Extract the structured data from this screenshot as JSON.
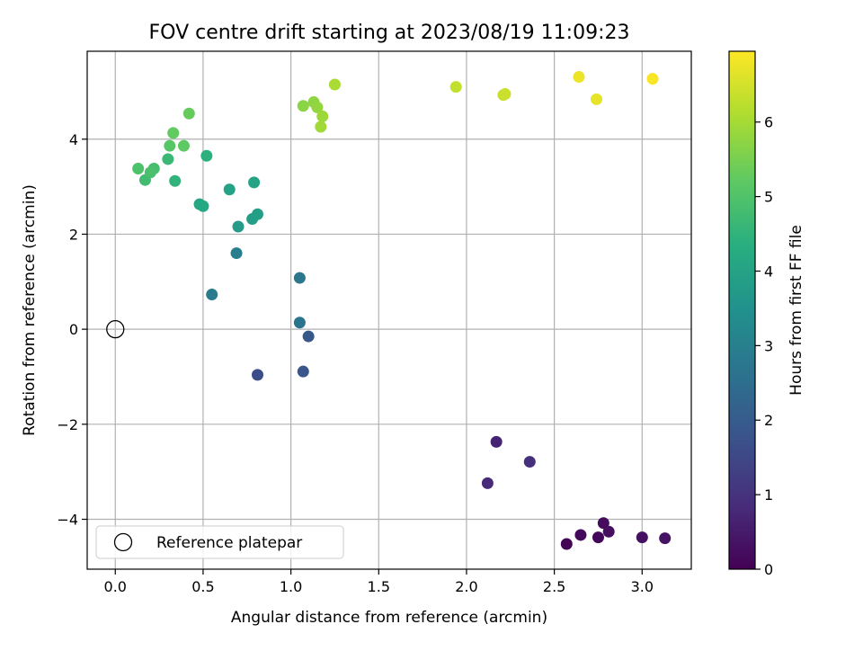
{
  "chart_data": {
    "type": "scatter",
    "title": "FOV centre drift starting at 2023/08/19 11:09:23",
    "xlabel": "Angular distance from reference (arcmin)",
    "ylabel": "Rotation from reference (arcmin)",
    "xlim": [
      -0.16,
      3.28
    ],
    "ylim": [
      -5.05,
      5.85
    ],
    "xticks": [
      0.0,
      0.5,
      1.0,
      1.5,
      2.0,
      2.5,
      3.0
    ],
    "xtick_labels": [
      "0.0",
      "0.5",
      "1.0",
      "1.5",
      "2.0",
      "2.5",
      "3.0"
    ],
    "yticks": [
      -4,
      -2,
      0,
      2,
      4
    ],
    "ytick_labels": [
      "−4",
      "−2",
      "0",
      "2",
      "4"
    ],
    "grid": true,
    "colormap": "viridis",
    "colorbar": {
      "label": "Hours from first FF file",
      "range": [
        0,
        6.95
      ],
      "ticks": [
        0,
        1,
        2,
        3,
        4,
        5,
        6
      ],
      "tick_labels": [
        "0",
        "1",
        "2",
        "3",
        "4",
        "5",
        "6"
      ]
    },
    "legend": {
      "placement": "lower-left",
      "label": "Reference platepar"
    },
    "reference_point": {
      "x": 0.0,
      "y": 0.0
    },
    "points": [
      {
        "x": 2.57,
        "y": -4.52,
        "c": 0.05
      },
      {
        "x": 2.65,
        "y": -4.33,
        "c": 0.15
      },
      {
        "x": 2.75,
        "y": -4.38,
        "c": 0.1
      },
      {
        "x": 2.78,
        "y": -4.08,
        "c": 0.2
      },
      {
        "x": 2.81,
        "y": -4.26,
        "c": 0.25
      },
      {
        "x": 3.0,
        "y": -4.38,
        "c": 0.3
      },
      {
        "x": 3.13,
        "y": -4.4,
        "c": 0.35
      },
      {
        "x": 2.12,
        "y": -3.24,
        "c": 0.8
      },
      {
        "x": 2.17,
        "y": -2.37,
        "c": 0.7
      },
      {
        "x": 2.36,
        "y": -2.79,
        "c": 0.95
      },
      {
        "x": 0.81,
        "y": -0.96,
        "c": 1.65
      },
      {
        "x": 1.07,
        "y": -0.89,
        "c": 1.85
      },
      {
        "x": 1.1,
        "y": -0.15,
        "c": 1.9
      },
      {
        "x": 1.05,
        "y": 0.14,
        "c": 2.65
      },
      {
        "x": 1.05,
        "y": 1.08,
        "c": 2.75
      },
      {
        "x": 0.55,
        "y": 0.73,
        "c": 2.85
      },
      {
        "x": 0.69,
        "y": 1.6,
        "c": 2.95
      },
      {
        "x": 0.7,
        "y": 2.16,
        "c": 3.8
      },
      {
        "x": 0.78,
        "y": 2.32,
        "c": 3.85
      },
      {
        "x": 0.81,
        "y": 2.42,
        "c": 3.9
      },
      {
        "x": 0.65,
        "y": 2.94,
        "c": 3.95
      },
      {
        "x": 0.79,
        "y": 3.09,
        "c": 4.0
      },
      {
        "x": 0.48,
        "y": 2.63,
        "c": 4.1
      },
      {
        "x": 0.5,
        "y": 2.59,
        "c": 4.15
      },
      {
        "x": 0.52,
        "y": 3.65,
        "c": 4.4
      },
      {
        "x": 0.34,
        "y": 3.12,
        "c": 4.5
      },
      {
        "x": 0.3,
        "y": 3.58,
        "c": 4.65
      },
      {
        "x": 0.17,
        "y": 3.14,
        "c": 4.75
      },
      {
        "x": 0.22,
        "y": 3.38,
        "c": 4.85
      },
      {
        "x": 0.2,
        "y": 3.3,
        "c": 4.9
      },
      {
        "x": 0.13,
        "y": 3.38,
        "c": 4.95
      },
      {
        "x": 0.31,
        "y": 3.86,
        "c": 5.1
      },
      {
        "x": 0.39,
        "y": 3.86,
        "c": 5.2
      },
      {
        "x": 0.33,
        "y": 4.13,
        "c": 5.25
      },
      {
        "x": 0.42,
        "y": 4.54,
        "c": 5.3
      },
      {
        "x": 1.07,
        "y": 4.7,
        "c": 5.7
      },
      {
        "x": 1.13,
        "y": 4.78,
        "c": 5.75
      },
      {
        "x": 1.15,
        "y": 4.67,
        "c": 5.8
      },
      {
        "x": 1.18,
        "y": 4.48,
        "c": 5.9
      },
      {
        "x": 1.17,
        "y": 4.26,
        "c": 5.95
      },
      {
        "x": 1.25,
        "y": 5.15,
        "c": 6.05
      },
      {
        "x": 1.94,
        "y": 5.1,
        "c": 6.3
      },
      {
        "x": 2.21,
        "y": 4.93,
        "c": 6.35
      },
      {
        "x": 2.22,
        "y": 4.95,
        "c": 6.4
      },
      {
        "x": 2.64,
        "y": 5.31,
        "c": 6.75
      },
      {
        "x": 2.74,
        "y": 4.84,
        "c": 6.7
      },
      {
        "x": 3.06,
        "y": 5.27,
        "c": 6.9
      }
    ]
  }
}
